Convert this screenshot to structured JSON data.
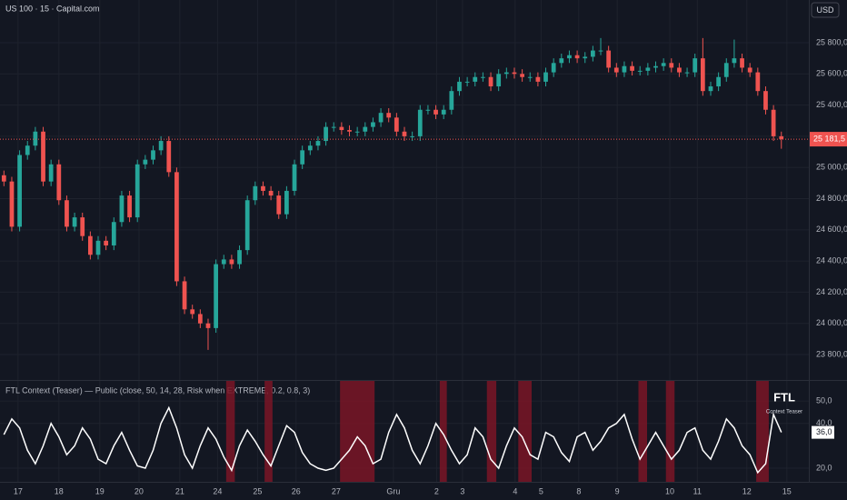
{
  "chart_data": [
    {
      "type": "candlestick",
      "title": "US 100 · 15 · Capital.com",
      "currency": "USD",
      "grid": true,
      "colors": {
        "up": "#26a69a",
        "down": "#ef5350"
      },
      "last_label": "25 181,5",
      "xlim": [
        -0.5,
        102.5
      ],
      "xticks": [
        {
          "value": 1.8,
          "label": "17"
        },
        {
          "value": 7.0,
          "label": "18"
        },
        {
          "value": 12.2,
          "label": "19"
        },
        {
          "value": 17.2,
          "label": "20"
        },
        {
          "value": 22.4,
          "label": "21"
        },
        {
          "value": 27.2,
          "label": "24"
        },
        {
          "value": 32.3,
          "label": "25"
        },
        {
          "value": 37.2,
          "label": "26"
        },
        {
          "value": 42.3,
          "label": "27"
        },
        {
          "value": 49.6,
          "label": "Gru"
        },
        {
          "value": 55.1,
          "label": "2"
        },
        {
          "value": 58.4,
          "label": "3"
        },
        {
          "value": 65.1,
          "label": "4"
        },
        {
          "value": 68.4,
          "label": "5"
        },
        {
          "value": 73.2,
          "label": "8"
        },
        {
          "value": 78.1,
          "label": "9"
        },
        {
          "value": 84.8,
          "label": "10"
        },
        {
          "value": 88.3,
          "label": "11"
        },
        {
          "value": 94.6,
          "label": "12"
        },
        {
          "value": 99.7,
          "label": "15"
        }
      ],
      "ylim": [
        23637,
        26074
      ],
      "yticks": [
        {
          "value": 23800,
          "label": "23 800,0"
        },
        {
          "value": 24000,
          "label": "24 000,0"
        },
        {
          "value": 24200,
          "label": "24 200,0"
        },
        {
          "value": 24400,
          "label": "24 400,0"
        },
        {
          "value": 24600,
          "label": "24 600,0"
        },
        {
          "value": 24800,
          "label": "24 800,0"
        },
        {
          "value": 25000,
          "label": "25 000,0"
        },
        {
          "value": 25200,
          "label": "25 200,0"
        },
        {
          "value": 25400,
          "label": "25 400,0"
        },
        {
          "value": 25600,
          "label": "25 600,0"
        },
        {
          "value": 25800,
          "label": "25 800,0"
        }
      ],
      "x": [
        0,
        1,
        2,
        3,
        4,
        5,
        6,
        7,
        8,
        9,
        10,
        11,
        12,
        13,
        14,
        15,
        16,
        17,
        18,
        19,
        20,
        21,
        22,
        23,
        24,
        25,
        26,
        27,
        28,
        29,
        30,
        31,
        32,
        33,
        34,
        35,
        36,
        37,
        38,
        39,
        40,
        41,
        42,
        43,
        44,
        45,
        46,
        47,
        48,
        49,
        50,
        51,
        52,
        53,
        54,
        55,
        56,
        57,
        58,
        59,
        60,
        61,
        62,
        63,
        64,
        65,
        66,
        67,
        68,
        69,
        70,
        71,
        72,
        73,
        74,
        75,
        76,
        77,
        78,
        79,
        80,
        81,
        82,
        83,
        84,
        85,
        86,
        87,
        88,
        89,
        90,
        91,
        92,
        93,
        94,
        95,
        96,
        97,
        98,
        99
      ],
      "open": [
        24950,
        24910,
        24620,
        25080,
        25140,
        25230,
        24910,
        25020,
        24790,
        24620,
        24680,
        24560,
        24440,
        24530,
        24500,
        24650,
        24820,
        24680,
        25020,
        25050,
        25110,
        25170,
        24970,
        24270,
        24090,
        24060,
        24000,
        23970,
        24380,
        24410,
        24380,
        24470,
        24790,
        24880,
        24850,
        24820,
        24700,
        24850,
        25020,
        25110,
        25140,
        25170,
        25260,
        25260,
        25240,
        25230,
        25230,
        25260,
        25290,
        25350,
        25320,
        25230,
        25200,
        25200,
        25370,
        25370,
        25340,
        25370,
        25490,
        25550,
        25550,
        25580,
        25580,
        25520,
        25600,
        25610,
        25600,
        25580,
        25580,
        25550,
        25610,
        25670,
        25700,
        25720,
        25700,
        25710,
        25750,
        25750,
        25640,
        25610,
        25650,
        25620,
        25620,
        25640,
        25650,
        25670,
        25640,
        25610,
        25610,
        25700,
        25490,
        25520,
        25580,
        25670,
        25700,
        25640,
        25610,
        25490,
        25370,
        25200
      ],
      "high": [
        24980,
        24940,
        25110,
        25170,
        25260,
        25260,
        25050,
        25050,
        24820,
        24710,
        24710,
        24590,
        24560,
        24560,
        24680,
        24850,
        24850,
        25050,
        25080,
        25140,
        25200,
        25200,
        25000,
        24300,
        24120,
        24090,
        24030,
        24410,
        24440,
        24440,
        24500,
        24820,
        24910,
        24910,
        24880,
        24850,
        24880,
        25050,
        25140,
        25170,
        25200,
        25290,
        25290,
        25290,
        25270,
        25260,
        25290,
        25320,
        25380,
        25380,
        25350,
        25260,
        25230,
        25400,
        25400,
        25400,
        25400,
        25520,
        25580,
        25580,
        25610,
        25610,
        25610,
        25630,
        25640,
        25640,
        25630,
        25610,
        25610,
        25640,
        25700,
        25730,
        25750,
        25750,
        25740,
        25780,
        25830,
        25780,
        25670,
        25680,
        25680,
        25650,
        25670,
        25680,
        25700,
        25700,
        25670,
        25640,
        25730,
        25830,
        25550,
        25610,
        25700,
        25820,
        25730,
        25670,
        25640,
        25520,
        25400,
        25230
      ],
      "low": [
        24880,
        24590,
        24590,
        25050,
        25110,
        24880,
        24880,
        24760,
        24590,
        24590,
        24530,
        24410,
        24410,
        24470,
        24470,
        24620,
        24650,
        24650,
        24990,
        25020,
        25080,
        24940,
        24240,
        24060,
        24030,
        23970,
        23830,
        23940,
        24350,
        24350,
        24350,
        24440,
        24760,
        24820,
        24790,
        24670,
        24670,
        24820,
        24990,
        25080,
        25110,
        25140,
        25230,
        25210,
        25200,
        25200,
        25200,
        25230,
        25260,
        25290,
        25200,
        25170,
        25170,
        25170,
        25340,
        25310,
        25310,
        25340,
        25460,
        25520,
        25520,
        25550,
        25490,
        25490,
        25570,
        25570,
        25550,
        25550,
        25520,
        25520,
        25580,
        25640,
        25670,
        25670,
        25670,
        25680,
        25720,
        25610,
        25580,
        25580,
        25590,
        25590,
        25590,
        25610,
        25620,
        25610,
        25580,
        25580,
        25580,
        25460,
        25460,
        25490,
        25550,
        25640,
        25610,
        25580,
        25460,
        25340,
        25170,
        25120
      ],
      "close": [
        24910,
        24620,
        25080,
        25140,
        25230,
        24910,
        25020,
        24790,
        24620,
        24680,
        24560,
        24440,
        24530,
        24500,
        24650,
        24820,
        24680,
        25020,
        25050,
        25110,
        25170,
        24970,
        24270,
        24090,
        24060,
        24000,
        23970,
        24380,
        24410,
        24380,
        24470,
        24790,
        24880,
        24850,
        24820,
        24700,
        24850,
        25020,
        25110,
        25140,
        25170,
        25260,
        25260,
        25240,
        25230,
        25230,
        25260,
        25290,
        25350,
        25320,
        25230,
        25200,
        25200,
        25370,
        25370,
        25340,
        25370,
        25490,
        25550,
        25550,
        25580,
        25580,
        25520,
        25600,
        25610,
        25600,
        25580,
        25580,
        25550,
        25610,
        25670,
        25700,
        25720,
        25700,
        25710,
        25750,
        25750,
        25640,
        25610,
        25650,
        25620,
        25620,
        25640,
        25650,
        25670,
        25640,
        25610,
        25610,
        25700,
        25490,
        25520,
        25580,
        25670,
        25700,
        25640,
        25610,
        25490,
        25370,
        25200,
        25181.5
      ]
    },
    {
      "type": "line",
      "title": "FTL Context (Teaser) — Public (close, 50, 14, 28, Risk when EXTREME, 0.2, 0.8, 3)",
      "annotations": [
        "FTL",
        "Context Teaser"
      ],
      "color": "#ffffff",
      "zone_color": "#7a1526",
      "grid": true,
      "last_label": "36,0",
      "xlim": [
        -0.5,
        102.5
      ],
      "ylim": [
        13.9,
        59.4
      ],
      "yticks": [
        {
          "value": 20,
          "label": "20,0"
        },
        {
          "value": 40,
          "label": "40,0"
        },
        {
          "value": 50,
          "label": "50,0"
        }
      ],
      "zones": [
        [
          28.3,
          29.4
        ],
        [
          33.2,
          34.2
        ],
        [
          42.8,
          47.2
        ],
        [
          55.5,
          56.4
        ],
        [
          61.5,
          62.7
        ],
        [
          65.5,
          67.2
        ],
        [
          80.8,
          81.9
        ],
        [
          84.3,
          85.4
        ],
        [
          95.8,
          97.4
        ]
      ],
      "x": [
        0,
        1,
        2,
        3,
        4,
        5,
        6,
        7,
        8,
        9,
        10,
        11,
        12,
        13,
        14,
        15,
        16,
        17,
        18,
        19,
        20,
        21,
        22,
        23,
        24,
        25,
        26,
        27,
        28,
        29,
        30,
        31,
        32,
        33,
        34,
        35,
        36,
        37,
        38,
        39,
        40,
        41,
        42,
        43,
        44,
        45,
        46,
        47,
        48,
        49,
        50,
        51,
        52,
        53,
        54,
        55,
        56,
        57,
        58,
        59,
        60,
        61,
        62,
        63,
        64,
        65,
        66,
        67,
        68,
        69,
        70,
        71,
        72,
        73,
        74,
        75,
        76,
        77,
        78,
        79,
        80,
        81,
        82,
        83,
        84,
        85,
        86,
        87,
        88,
        89,
        90,
        91,
        92,
        93,
        94,
        95,
        96,
        97,
        98,
        99
      ],
      "values": [
        35,
        42,
        38,
        28,
        22,
        30,
        40,
        34,
        26,
        30,
        38,
        33,
        24,
        22,
        30,
        36,
        28,
        21,
        20,
        28,
        40,
        47,
        38,
        26,
        20,
        30,
        38,
        33,
        25,
        19,
        30,
        37,
        32,
        26,
        21,
        30,
        39,
        36,
        27,
        22,
        20,
        19,
        20,
        24,
        28,
        34,
        30,
        22,
        24,
        36,
        44,
        38,
        28,
        22,
        30,
        40,
        35,
        28,
        22,
        26,
        38,
        34,
        24,
        20,
        30,
        38,
        34,
        26,
        24,
        36,
        34,
        27,
        23,
        34,
        36,
        28,
        32,
        38,
        40,
        44,
        33,
        24,
        30,
        36,
        30,
        24,
        28,
        36,
        38,
        28,
        24,
        32,
        42,
        38,
        30,
        26,
        18,
        22,
        44,
        36
      ]
    }
  ]
}
